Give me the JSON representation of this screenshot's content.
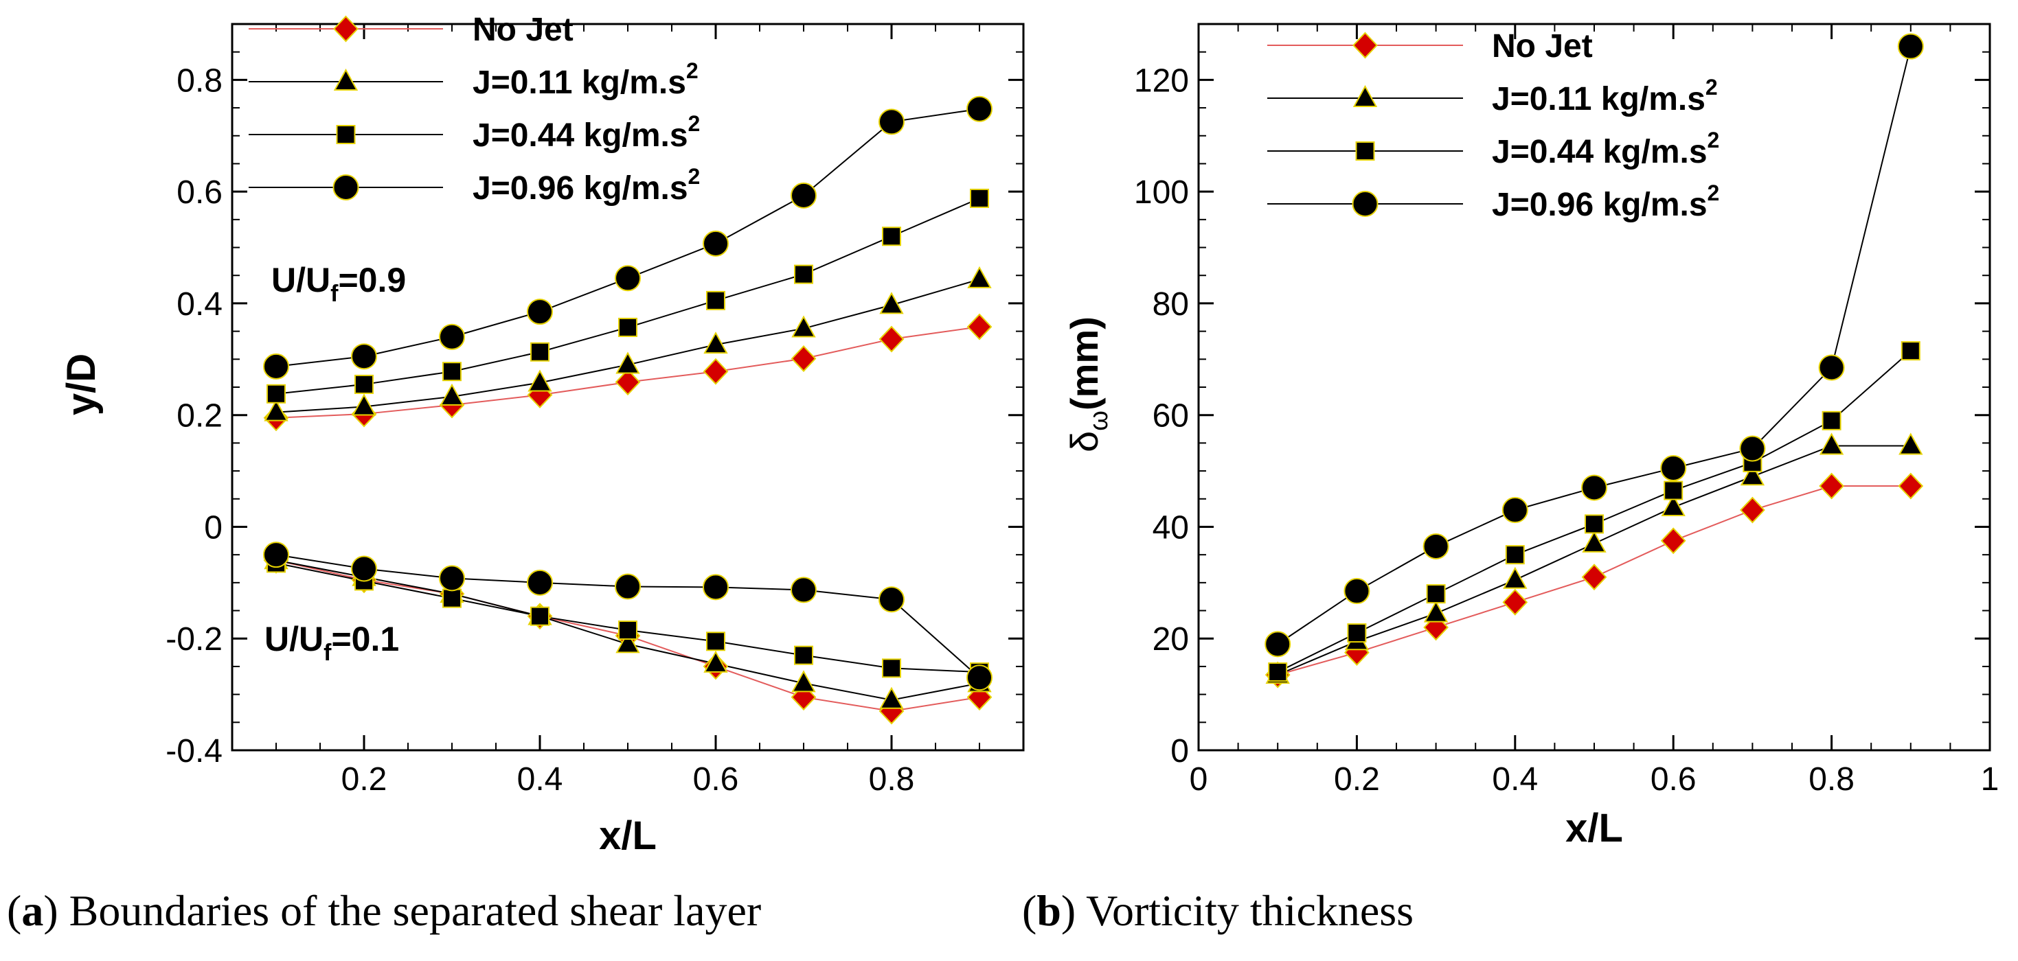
{
  "chart_data": [
    {
      "type": "line",
      "panel_label": "a",
      "caption": "Boundaries of the separated shear layer",
      "xlabel": "x/L",
      "ylabel": "y/D",
      "xlim": [
        0.05,
        0.95
      ],
      "ylim": [
        -0.4,
        0.9
      ],
      "xticks": [
        0.2,
        0.4,
        0.6,
        0.8
      ],
      "xtick_labels": [
        "0.2",
        "0.4",
        "0.6",
        "0.8"
      ],
      "yticks": [
        -0.4,
        -0.2,
        0,
        0.2,
        0.4,
        0.6,
        0.8
      ],
      "ytick_labels": [
        "-0.4",
        "-0.2",
        "0",
        "0.2",
        "0.4",
        "0.6",
        "0.8"
      ],
      "x": [
        0.1,
        0.2,
        0.3,
        0.4,
        0.5,
        0.6,
        0.7,
        0.8,
        0.9
      ],
      "annotations": [
        {
          "base": "U/U",
          "sub": "f",
          "value": "=0.9"
        },
        {
          "base": "U/U",
          "sub": "f",
          "value": "=0.1"
        }
      ],
      "legend": "top",
      "series": [
        {
          "name": "No Jet",
          "marker": "diamond",
          "color": "#d40000",
          "line_color": "#e35b5b",
          "values_upper": [
            0.195,
            0.202,
            0.218,
            0.236,
            0.259,
            0.278,
            0.301,
            0.336,
            0.358
          ],
          "values_lower": [
            -0.06,
            -0.095,
            -0.12,
            -0.16,
            -0.195,
            -0.25,
            -0.305,
            -0.33,
            -0.305
          ]
        },
        {
          "name": "J=0.11 kg/m.s",
          "name_sup": "2",
          "marker": "triangle",
          "color": "#000000",
          "line_color": "#000000",
          "values_upper": [
            0.205,
            0.215,
            0.233,
            0.258,
            0.29,
            0.326,
            0.355,
            0.397,
            0.443
          ],
          "values_lower": [
            -0.06,
            -0.09,
            -0.12,
            -0.16,
            -0.21,
            -0.245,
            -0.28,
            -0.31,
            -0.28
          ]
        },
        {
          "name": "J=0.44 kg/m.s",
          "name_sup": "2",
          "marker": "square",
          "color": "#000000",
          "line_color": "#000000",
          "values_upper": [
            0.238,
            0.255,
            0.278,
            0.313,
            0.357,
            0.405,
            0.452,
            0.52,
            0.588
          ],
          "values_lower": [
            -0.065,
            -0.097,
            -0.128,
            -0.16,
            -0.185,
            -0.205,
            -0.23,
            -0.253,
            -0.26
          ]
        },
        {
          "name": "J=0.96 kg/m.s",
          "name_sup": "2",
          "marker": "circle",
          "color": "#000000",
          "line_color": "#000000",
          "values_upper": [
            0.287,
            0.305,
            0.34,
            0.385,
            0.445,
            0.507,
            0.593,
            0.725,
            0.748
          ],
          "values_lower": [
            -0.05,
            -0.075,
            -0.092,
            -0.1,
            -0.107,
            -0.108,
            -0.113,
            -0.13,
            -0.27
          ]
        }
      ]
    },
    {
      "type": "line",
      "panel_label": "b",
      "caption": "Vorticity thickness",
      "xlabel": "x/L",
      "ylabel_base": "δ",
      "ylabel_sub": "ω",
      "ylabel_rest": "(mm)",
      "xlim": [
        0,
        1
      ],
      "ylim": [
        0,
        130
      ],
      "xticks": [
        0,
        0.2,
        0.4,
        0.6,
        0.8,
        1
      ],
      "xtick_labels": [
        "0",
        "0.2",
        "0.4",
        "0.6",
        "0.8",
        "1"
      ],
      "yticks": [
        0,
        20,
        40,
        60,
        80,
        100,
        120
      ],
      "ytick_labels": [
        "0",
        "20",
        "40",
        "60",
        "80",
        "100",
        "120"
      ],
      "x": [
        0.1,
        0.2,
        0.3,
        0.4,
        0.5,
        0.6,
        0.7,
        0.8,
        0.9
      ],
      "legend": "top-left",
      "series": [
        {
          "name": "No Jet",
          "marker": "diamond",
          "color": "#d40000",
          "line_color": "#e35b5b",
          "values": [
            13.5,
            17.5,
            22,
            26.5,
            31,
            37.5,
            43,
            47.3,
            47.3
          ]
        },
        {
          "name": "J=0.11 kg/m.s",
          "name_sup": "2",
          "marker": "triangle",
          "color": "#000000",
          "line_color": "#000000",
          "values": [
            13.5,
            19.5,
            24.5,
            30.5,
            37,
            43.5,
            49,
            54.5,
            54.5
          ]
        },
        {
          "name": "J=0.44 kg/m.s",
          "name_sup": "2",
          "marker": "square",
          "color": "#000000",
          "line_color": "#000000",
          "values": [
            14,
            21,
            28,
            35,
            40.5,
            46.5,
            51.5,
            59,
            71.5
          ]
        },
        {
          "name": "J=0.96 kg/m.s",
          "name_sup": "2",
          "marker": "circle",
          "color": "#000000",
          "line_color": "#000000",
          "values": [
            19,
            28.5,
            36.5,
            43,
            47,
            50.5,
            54,
            68.5,
            126
          ]
        }
      ]
    }
  ]
}
